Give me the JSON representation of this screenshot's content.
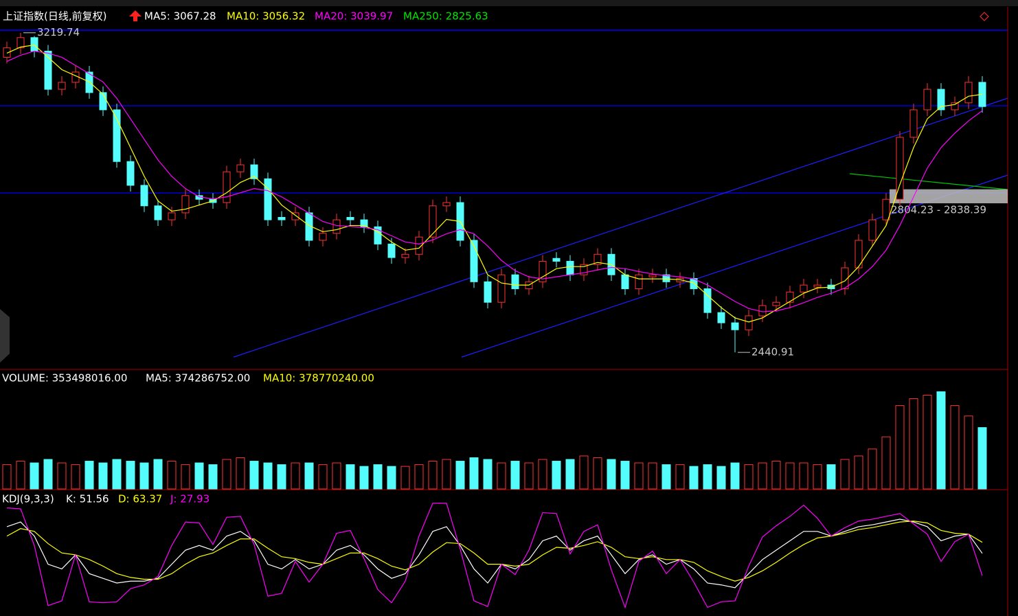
{
  "chart_data": [
    {
      "type": "candlestick",
      "title": "上证指数(日线,前复权)",
      "legend": [
        {
          "label": "MA5: 3067.28",
          "color": "#ffffff"
        },
        {
          "label": "MA10: 3056.32",
          "color": "#ffff00"
        },
        {
          "label": "MA20: 3039.97",
          "color": "#ff00ff"
        },
        {
          "label": "MA250: 2825.63",
          "color": "#00e600"
        }
      ],
      "up_color": "#ff3232",
      "down_color": "#54fcfc",
      "ylim": [
        2401,
        3226
      ],
      "open": [
        3160,
        3183,
        3208,
        3175,
        3082,
        3099,
        3124,
        3074,
        3032,
        2906,
        2848,
        2798,
        2764,
        2781,
        2823,
        2814,
        2806,
        2881,
        2898,
        2864,
        2770,
        2764,
        2781,
        2714,
        2731,
        2770,
        2764,
        2747,
        2705,
        2672,
        2680,
        2722,
        2798,
        2806,
        2714,
        2613,
        2563,
        2630,
        2596,
        2613,
        2670,
        2663,
        2630,
        2655,
        2680,
        2630,
        2596,
        2625,
        2630,
        2613,
        2621,
        2596,
        2538,
        2513,
        2496,
        2530,
        2555,
        2563,
        2588,
        2600,
        2605,
        2596,
        2647,
        2714,
        2764,
        2814,
        2965,
        3032,
        3082,
        3032,
        3049,
        3099
      ],
      "high": [
        3198,
        3219.74,
        3212,
        3190,
        3114,
        3139,
        3139,
        3089,
        3047,
        2921,
        2863,
        2813,
        2796,
        2838,
        2838,
        2829,
        2896,
        2913,
        2913,
        2879,
        2785,
        2796,
        2796,
        2746,
        2779,
        2785,
        2779,
        2762,
        2720,
        2695,
        2737,
        2813,
        2821,
        2821,
        2729,
        2628,
        2645,
        2645,
        2628,
        2678,
        2685,
        2678,
        2670,
        2695,
        2695,
        2645,
        2645,
        2645,
        2645,
        2636,
        2636,
        2611,
        2553,
        2528,
        2545,
        2570,
        2578,
        2603,
        2620,
        2620,
        2620,
        2662,
        2729,
        2779,
        2829,
        2980,
        3047,
        3097,
        3097,
        3064,
        3114,
        3114
      ],
      "low": [
        3145,
        3168,
        3160,
        3067,
        3067,
        3084,
        3059,
        3017,
        2891,
        2833,
        2783,
        2749,
        2749,
        2766,
        2799,
        2791,
        2791,
        2866,
        2849,
        2749,
        2749,
        2749,
        2699,
        2699,
        2716,
        2749,
        2732,
        2690,
        2657,
        2657,
        2665,
        2707,
        2783,
        2699,
        2598,
        2548,
        2548,
        2581,
        2581,
        2598,
        2648,
        2615,
        2615,
        2640,
        2615,
        2581,
        2581,
        2610,
        2598,
        2598,
        2581,
        2523,
        2498,
        2440.91,
        2481,
        2515,
        2540,
        2548,
        2573,
        2585,
        2581,
        2581,
        2632,
        2699,
        2749,
        2799,
        2950,
        3017,
        3017,
        3017,
        3034,
        3025
      ],
      "close": [
        3183,
        3208,
        3175,
        3082,
        3099,
        3124,
        3074,
        3032,
        2906,
        2848,
        2798,
        2764,
        2781,
        2823,
        2814,
        2806,
        2881,
        2898,
        2864,
        2764,
        2764,
        2781,
        2714,
        2731,
        2764,
        2764,
        2747,
        2705,
        2672,
        2680,
        2722,
        2798,
        2806,
        2714,
        2613,
        2563,
        2630,
        2596,
        2613,
        2663,
        2663,
        2630,
        2655,
        2680,
        2630,
        2596,
        2630,
        2630,
        2613,
        2621,
        2596,
        2538,
        2513,
        2496,
        2530,
        2555,
        2563,
        2588,
        2605,
        2605,
        2596,
        2647,
        2714,
        2764,
        2814,
        2965,
        3032,
        3082,
        3032,
        3049,
        3099,
        3040
      ],
      "lines": [
        {
          "color": "#ffff00",
          "values": [
            3170,
            3185,
            3190,
            3160,
            3130,
            3115,
            3100,
            3070,
            3010,
            2940,
            2870,
            2810,
            2785,
            2790,
            2800,
            2810,
            2830,
            2855,
            2870,
            2840,
            2800,
            2775,
            2750,
            2735,
            2740,
            2750,
            2750,
            2735,
            2710,
            2690,
            2695,
            2730,
            2765,
            2760,
            2700,
            2630,
            2610,
            2605,
            2605,
            2625,
            2645,
            2650,
            2650,
            2660,
            2655,
            2630,
            2620,
            2620,
            2620,
            2618,
            2610,
            2580,
            2550,
            2525,
            2515,
            2525,
            2545,
            2565,
            2585,
            2598,
            2600,
            2615,
            2650,
            2700,
            2750,
            2850,
            2940,
            3010,
            3040,
            3045,
            3065,
            3070
          ]
        },
        {
          "color": "#ff00ff",
          "values": [
            3150,
            3165,
            3175,
            3170,
            3160,
            3140,
            3120,
            3100,
            3060,
            3010,
            2960,
            2910,
            2870,
            2840,
            2820,
            2815,
            2820,
            2830,
            2840,
            2835,
            2820,
            2800,
            2780,
            2760,
            2750,
            2748,
            2745,
            2740,
            2725,
            2710,
            2705,
            2715,
            2730,
            2740,
            2730,
            2700,
            2665,
            2640,
            2625,
            2620,
            2625,
            2630,
            2635,
            2642,
            2648,
            2645,
            2638,
            2632,
            2628,
            2625,
            2620,
            2605,
            2585,
            2565,
            2548,
            2540,
            2542,
            2550,
            2562,
            2575,
            2585,
            2598,
            2620,
            2650,
            2690,
            2750,
            2820,
            2890,
            2940,
            2975,
            3005,
            3030
          ]
        }
      ],
      "annotations": [
        {
          "label": "3219.74",
          "value": 3219.74,
          "index": 1
        },
        {
          "label": "2440.91",
          "value": 2440.91,
          "index": 53
        }
      ],
      "gap": {
        "values": [
          2804.23,
          2838.39
        ],
        "label": "2804.23 - 2838.39"
      }
    },
    {
      "type": "bar",
      "title": "VOLUME: 353498016.00",
      "legend": [
        {
          "label": "MA5: 374286752.00",
          "color": "#ffffff"
        },
        {
          "label": "MA10: 378770240.00",
          "color": "#ffff00"
        }
      ],
      "ylim": [
        0,
        680000000
      ],
      "values": [
        140000000,
        160000000,
        150000000,
        170000000,
        150000000,
        140000000,
        160000000,
        150000000,
        170000000,
        160000000,
        150000000,
        170000000,
        160000000,
        140000000,
        150000000,
        140000000,
        170000000,
        180000000,
        160000000,
        150000000,
        140000000,
        150000000,
        150000000,
        140000000,
        150000000,
        140000000,
        130000000,
        140000000,
        130000000,
        130000000,
        140000000,
        160000000,
        170000000,
        160000000,
        180000000,
        170000000,
        150000000,
        160000000,
        150000000,
        170000000,
        160000000,
        170000000,
        190000000,
        180000000,
        170000000,
        160000000,
        150000000,
        150000000,
        140000000,
        140000000,
        130000000,
        140000000,
        130000000,
        150000000,
        140000000,
        150000000,
        160000000,
        150000000,
        150000000,
        140000000,
        140000000,
        170000000,
        190000000,
        230000000,
        300000000,
        480000000,
        520000000,
        540000000,
        560000000,
        480000000,
        420000000,
        353498016
      ]
    },
    {
      "type": "line",
      "title": "KDJ(9,3,3)",
      "legend": [
        {
          "label": "K: 51.56",
          "color": "#ffffff"
        },
        {
          "label": "D: 63.37",
          "color": "#ffff00"
        },
        {
          "label": "J: 27.93",
          "color": "#ff00ff"
        }
      ],
      "ylim": [
        -10,
        118
      ],
      "series": [
        {
          "color": "#ffffff",
          "values": [
            80,
            85,
            70,
            40,
            35,
            50,
            30,
            25,
            20,
            22,
            22,
            25,
            40,
            55,
            60,
            55,
            70,
            75,
            65,
            40,
            35,
            45,
            35,
            40,
            55,
            60,
            50,
            35,
            25,
            30,
            50,
            75,
            80,
            60,
            35,
            20,
            40,
            35,
            45,
            65,
            70,
            55,
            65,
            70,
            50,
            30,
            45,
            50,
            40,
            45,
            35,
            20,
            18,
            15,
            30,
            45,
            55,
            65,
            75,
            75,
            70,
            75,
            80,
            82,
            85,
            88,
            85,
            80,
            65,
            70,
            72,
            51.56
          ]
        },
        {
          "color": "#ffff00",
          "values": [
            70,
            78,
            75,
            62,
            52,
            50,
            45,
            38,
            30,
            26,
            24,
            24,
            30,
            40,
            48,
            52,
            60,
            67,
            67,
            57,
            48,
            46,
            42,
            40,
            46,
            52,
            52,
            46,
            38,
            34,
            40,
            53,
            63,
            62,
            52,
            40,
            40,
            38,
            40,
            50,
            58,
            57,
            60,
            64,
            58,
            48,
            46,
            48,
            45,
            45,
            42,
            33,
            27,
            22,
            26,
            33,
            42,
            52,
            61,
            68,
            70,
            73,
            77,
            79,
            82,
            85,
            86,
            84,
            76,
            73,
            72,
            63.37
          ]
        },
        {
          "color": "#ff00ff",
          "values": [
            100,
            99,
            60,
            -4,
            1,
            50,
            0,
            -1,
            0,
            14,
            18,
            27,
            60,
            85,
            84,
            61,
            90,
            91,
            61,
            6,
            9,
            43,
            21,
            40,
            73,
            76,
            46,
            13,
            -1,
            22,
            70,
            105,
            105,
            56,
            1,
            -5,
            40,
            29,
            55,
            95,
            94,
            51,
            75,
            82,
            34,
            -6,
            43,
            54,
            30,
            45,
            21,
            -6,
            0,
            1,
            38,
            69,
            81,
            91,
            103,
            89,
            70,
            79,
            86,
            88,
            91,
            94,
            83,
            72,
            43,
            64,
            72,
            27.93
          ]
        }
      ]
    }
  ]
}
